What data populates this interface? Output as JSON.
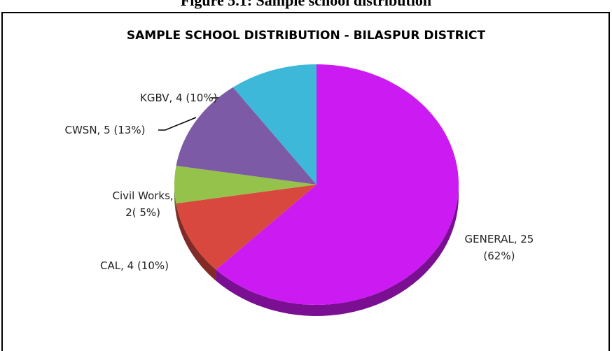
{
  "title": "Figure 5.1: Sample school distribution",
  "chart_data": {
    "type": "pie",
    "title": "SAMPLE  SCHOOL  DISTRIBUTION - BILASPUR DISTRICT",
    "categories": [
      "GENERAL",
      "CAL",
      "Civil Works",
      "CWSN",
      "KGBV"
    ],
    "values": [
      25,
      4,
      2,
      5,
      4
    ],
    "value_labels": [
      "GENERAL, 25\n(62%)",
      "CAL, 4 (10%)",
      "Civil Works,\n2( 5%)",
      "CWSN, 5 (13%)",
      "KGBV, 4 (10%)"
    ],
    "colors": [
      "#cc1af2",
      "#d9483f",
      "#95c24a",
      "#7c5aa6",
      "#3db8d8"
    ]
  }
}
